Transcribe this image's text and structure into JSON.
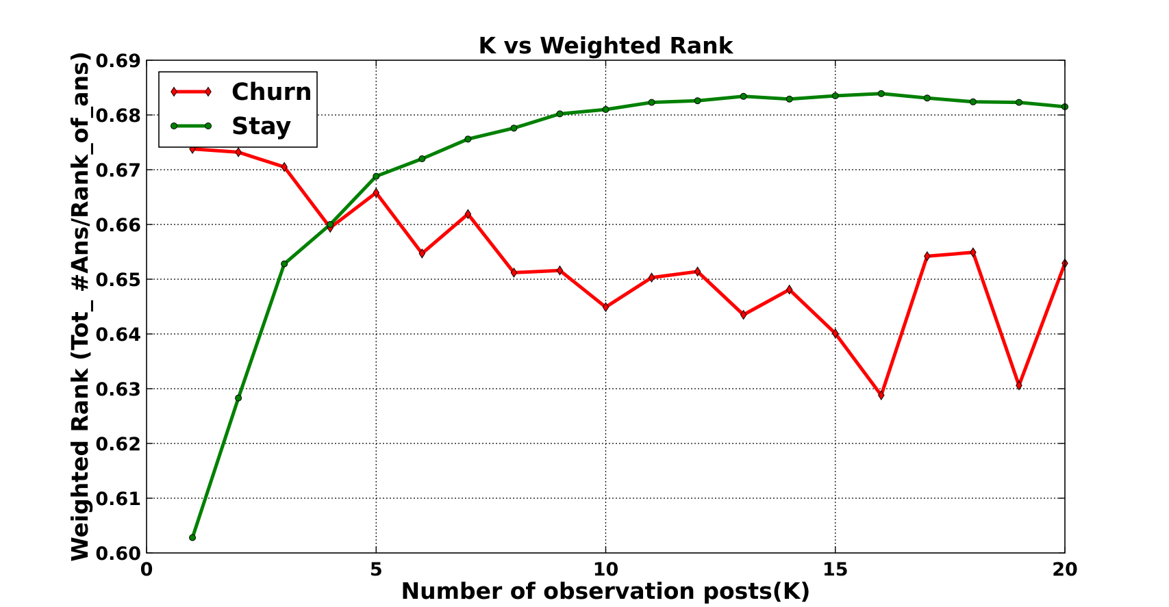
{
  "chart_data": {
    "type": "line",
    "title": "K vs Weighted Rank",
    "xlabel": "Number of observation posts(K)",
    "ylabel": "Weighted Rank (Tot_ #Ans/Rank_of_ans)",
    "xlim": [
      0,
      20
    ],
    "ylim": [
      0.6,
      0.69
    ],
    "xticks": [
      0,
      5,
      10,
      15,
      20
    ],
    "yticks": [
      0.6,
      0.61,
      0.62,
      0.63,
      0.64,
      0.65,
      0.66,
      0.67,
      0.68,
      0.69
    ],
    "xtick_labels": [
      "0",
      "5",
      "10",
      "15",
      "20"
    ],
    "ytick_labels": [
      "0.60",
      "0.61",
      "0.62",
      "0.63",
      "0.64",
      "0.65",
      "0.66",
      "0.67",
      "0.68",
      "0.69"
    ],
    "grid": true,
    "legend_position": "top-left",
    "x": [
      1,
      2,
      3,
      4,
      5,
      6,
      7,
      8,
      9,
      10,
      11,
      12,
      13,
      14,
      15,
      16,
      17,
      18,
      19,
      20
    ],
    "series": [
      {
        "name": "Churn",
        "color": "#ff0000",
        "marker": "diamond",
        "values": [
          0.6738,
          0.6732,
          0.6705,
          0.6594,
          0.6658,
          0.6547,
          0.6619,
          0.6512,
          0.6516,
          0.6449,
          0.6503,
          0.6514,
          0.6435,
          0.6481,
          0.6401,
          0.6288,
          0.6542,
          0.6549,
          0.6306,
          0.6529
        ]
      },
      {
        "name": "Stay",
        "color": "#008000",
        "marker": "circle",
        "values": [
          0.6028,
          0.6283,
          0.6528,
          0.66,
          0.6688,
          0.672,
          0.6756,
          0.6776,
          0.6802,
          0.681,
          0.6823,
          0.6826,
          0.6834,
          0.6829,
          0.6835,
          0.6839,
          0.6831,
          0.6824,
          0.6823,
          0.6815
        ]
      }
    ]
  }
}
